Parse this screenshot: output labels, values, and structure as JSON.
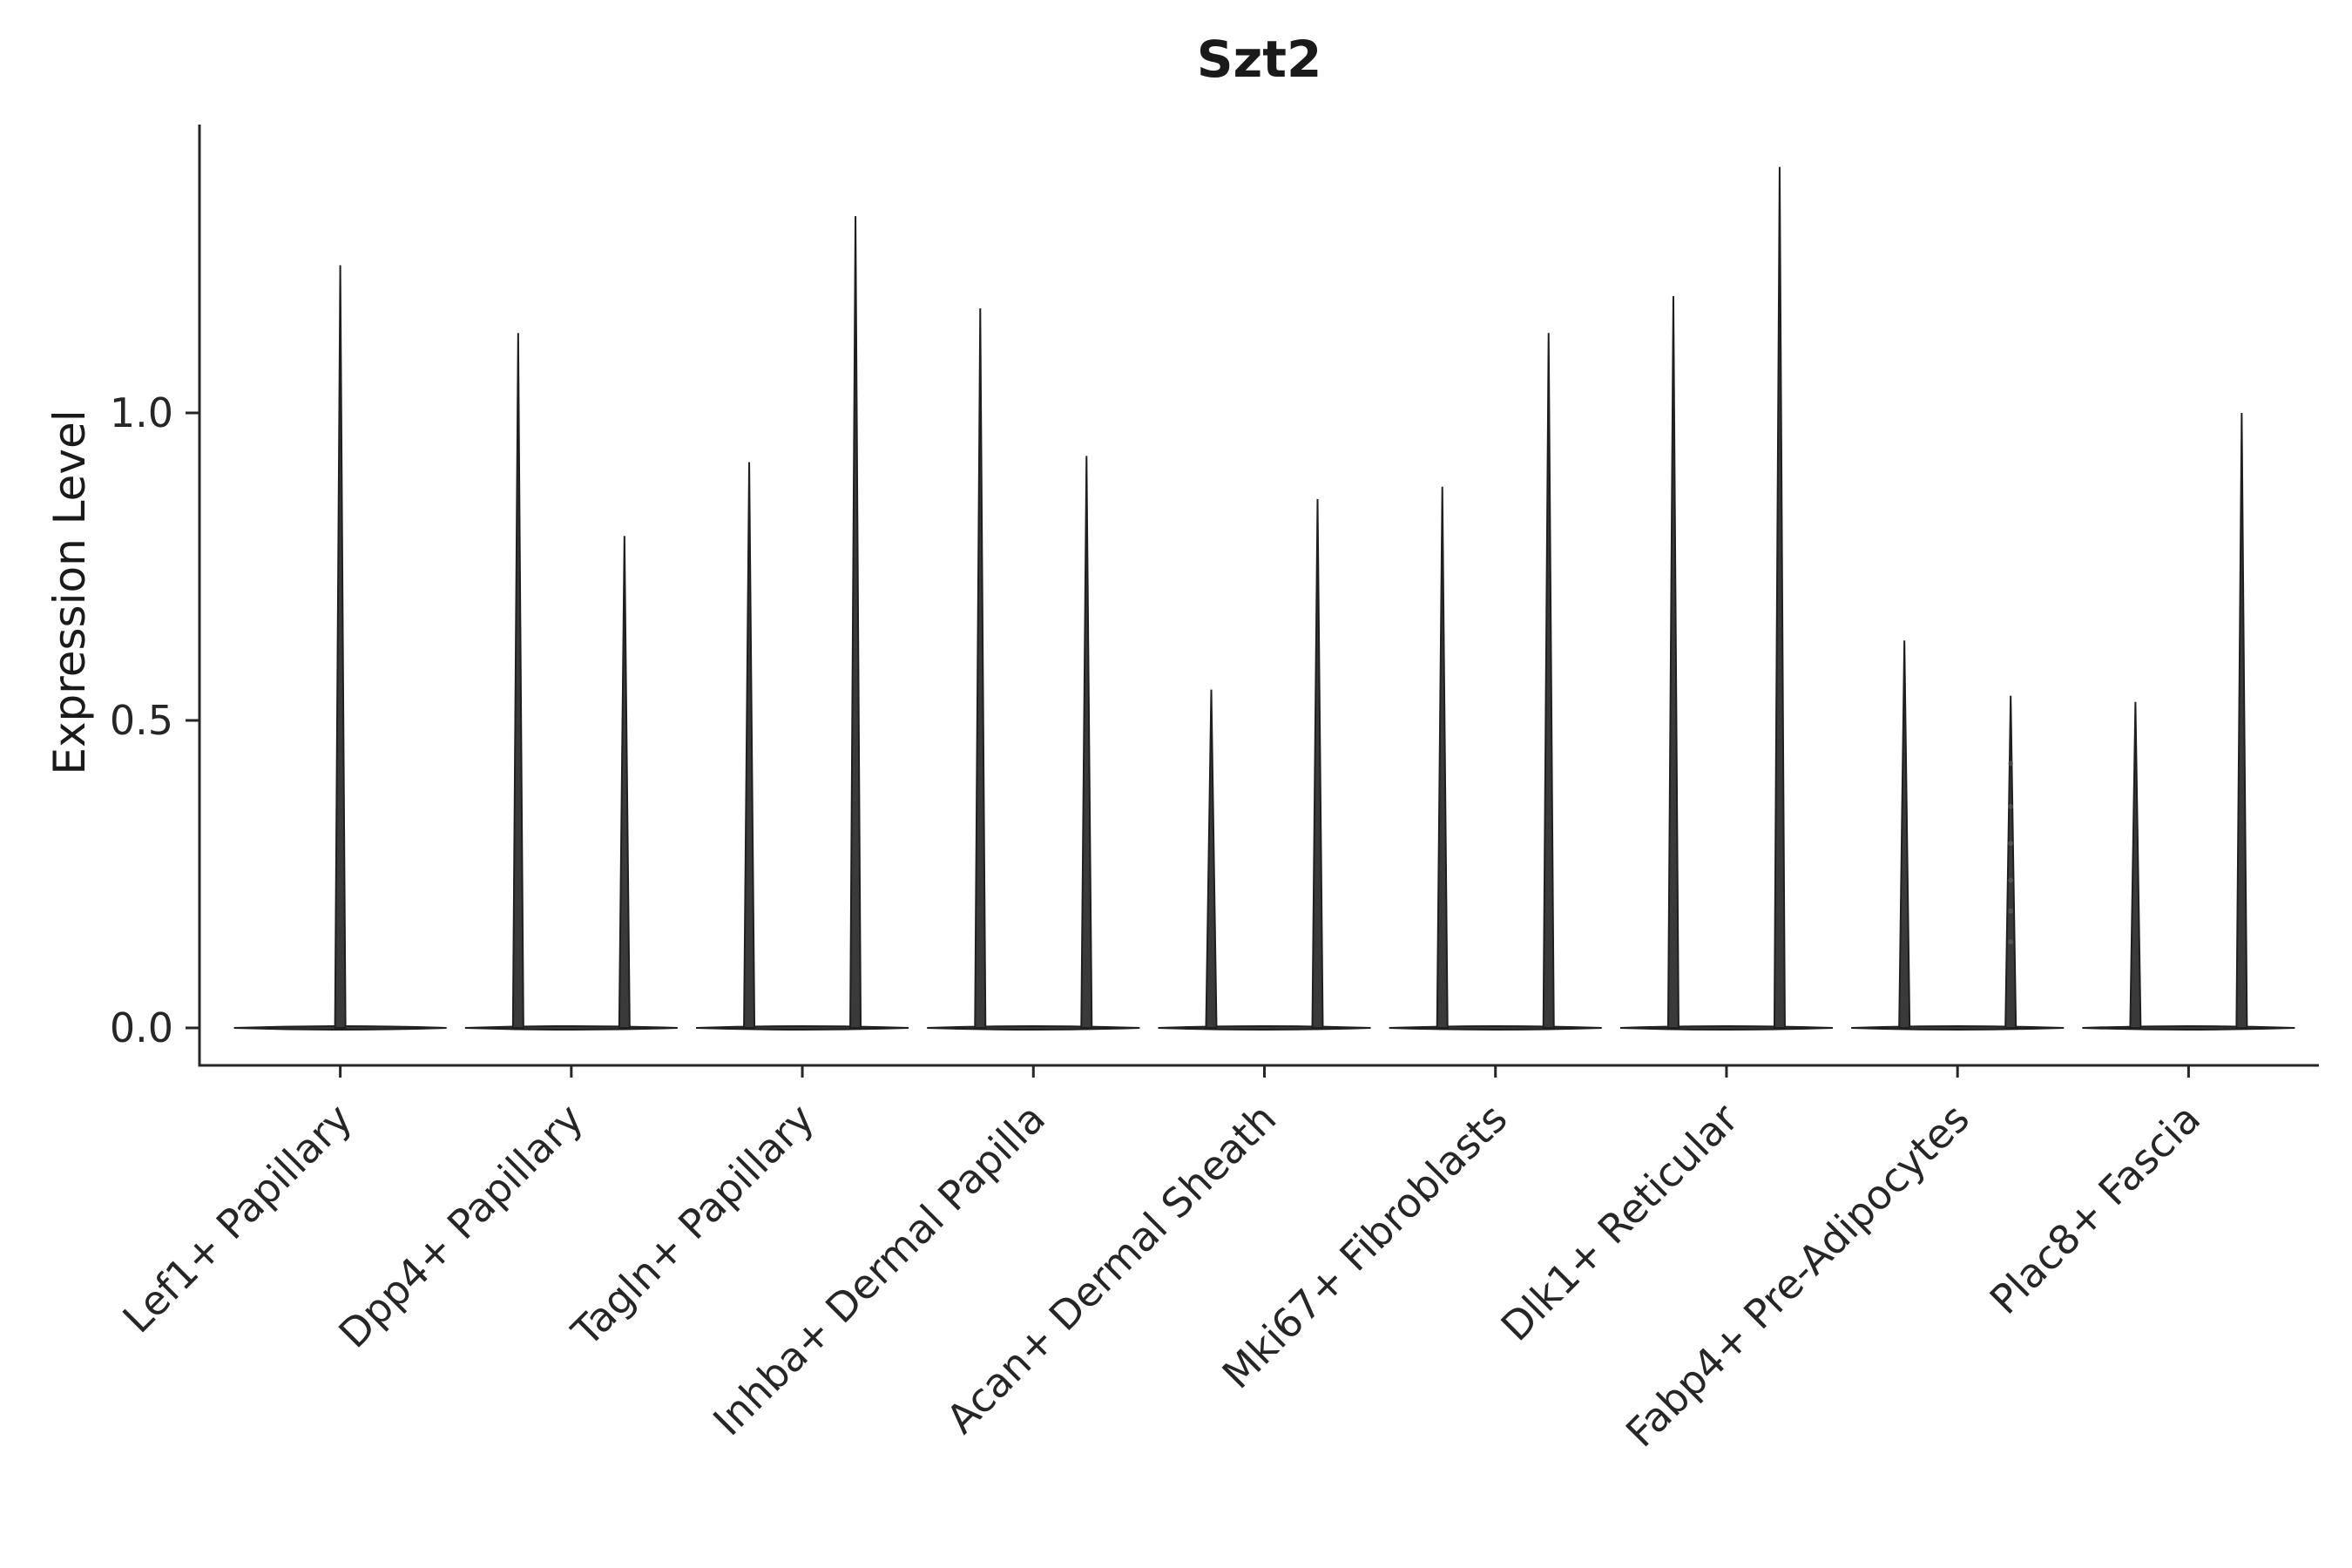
{
  "chart_data": {
    "type": "violin",
    "title": "Szt2",
    "ylabel": "Expression Level",
    "xlabel": "",
    "yticks": [
      0.0,
      0.5,
      1.0
    ],
    "ytick_labels": [
      "0.0",
      "0.5",
      "1.0"
    ],
    "ylim": [
      -0.06,
      1.47
    ],
    "grid": false,
    "legend": "none",
    "violin_fill": "#3a3a3a",
    "violin_stroke": "#1f1f1f",
    "axis_color": "#262626",
    "groups": [
      {
        "label": "Lef1+ Papillary",
        "violins": [
          {
            "pos": 0.0,
            "max": 1.24
          }
        ]
      },
      {
        "label": "Dpp4+ Papillary",
        "violins": [
          {
            "pos": -0.23,
            "max": 1.13
          },
          {
            "pos": 0.23,
            "max": 0.8
          }
        ]
      },
      {
        "label": "Tagln+ Papillary",
        "violins": [
          {
            "pos": -0.23,
            "max": 0.92
          },
          {
            "pos": 0.23,
            "max": 1.32
          }
        ]
      },
      {
        "label": "Inhba+ Dermal Papilla",
        "violins": [
          {
            "pos": -0.23,
            "max": 1.17
          },
          {
            "pos": 0.23,
            "max": 0.93
          }
        ]
      },
      {
        "label": "Acan+ Dermal Sheath",
        "violins": [
          {
            "pos": -0.23,
            "max": 0.55
          },
          {
            "pos": 0.23,
            "max": 0.86
          }
        ]
      },
      {
        "label": "Mki67+ Fibroblasts",
        "violins": [
          {
            "pos": -0.23,
            "max": 0.88
          },
          {
            "pos": 0.23,
            "max": 1.13
          }
        ]
      },
      {
        "label": "Dlk1+ Reticular",
        "violins": [
          {
            "pos": -0.23,
            "max": 1.19
          },
          {
            "pos": 0.23,
            "max": 1.4
          }
        ]
      },
      {
        "label": "Fabp4+ Pre-Adipocytes",
        "violins": [
          {
            "pos": -0.23,
            "max": 0.63
          },
          {
            "pos": 0.23,
            "max": 0.54,
            "dots": [
              0.14,
              0.19,
              0.24,
              0.3,
              0.36,
              0.43
            ]
          }
        ]
      },
      {
        "label": "Plac8+ Fascia",
        "violins": [
          {
            "pos": -0.23,
            "max": 0.53
          },
          {
            "pos": 0.23,
            "max": 1.0
          }
        ]
      }
    ]
  }
}
